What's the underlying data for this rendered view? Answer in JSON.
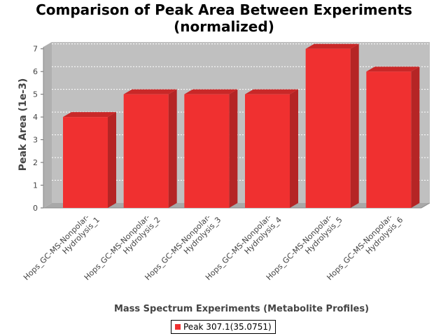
{
  "chart_data": {
    "type": "bar",
    "title": "Comparison of Peak Area Between Experiments",
    "subtitle": "(normalized)",
    "xlabel": "Mass Spectrum Experiments (Metabolite Profiles)",
    "ylabel": "Peak Area (1e-3)",
    "ylim": [
      0,
      7.3
    ],
    "yticks": [
      "0",
      "1",
      "2",
      "3",
      "4",
      "5",
      "6",
      "7"
    ],
    "grid": true,
    "legend_position": "bottom",
    "categories": [
      "Hops_GC-MS-Nonpolar-Hydrolysis_1",
      "Hops_GC-MS-Nonpolar-Hydrolysis_2",
      "Hops_GC-MS-Nonpolar-Hydrolysis_3",
      "Hops_GC-MS-Nonpolar-Hydrolysis_4",
      "Hops_GC-MS-Nonpolar-Hydrolysis_5",
      "Hops_GC-MS-Nonpolar-Hydrolysis_6"
    ],
    "category_lines": [
      [
        "Hops_GC-MS-Nonpolar-",
        "Hydrolysis_1"
      ],
      [
        "Hops_GC-MS-Nonpolar-",
        "Hydrolysis_2"
      ],
      [
        "Hops_GC-MS-Nonpolar-",
        "Hydrolysis_3"
      ],
      [
        "Hops_GC-MS-Nonpolar-",
        "Hydrolysis_4"
      ],
      [
        "Hops_GC-MS-Nonpolar-",
        "Hydrolysis_5"
      ],
      [
        "Hops_GC-MS-Nonpolar-",
        "Hydrolysis_6"
      ]
    ],
    "series": [
      {
        "name": "Peak 307.1(35.0751)",
        "values": [
          4,
          5,
          5,
          5,
          7,
          6
        ],
        "color": "#f03030"
      }
    ],
    "colors": {
      "plot_background": "#c0c0c0",
      "bar_front": "#f03030",
      "bar_side": "#b52525",
      "bar_top": "#c92828"
    }
  }
}
